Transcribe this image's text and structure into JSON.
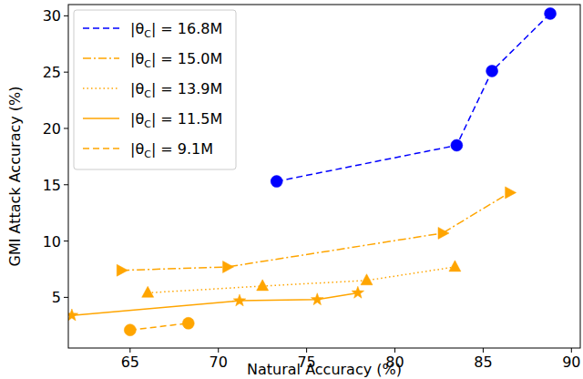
{
  "chart_data": {
    "type": "line",
    "x_label": "Natural Accuracy (%)",
    "y_label": "GMI Attack Accuracy (%)",
    "xlim": [
      61.5,
      90.5
    ],
    "xticks": [
      65,
      70,
      75,
      80,
      85,
      90
    ],
    "ylim": [
      0.5,
      31
    ],
    "yticks": [
      5,
      10,
      15,
      20,
      25,
      30
    ],
    "legend": "upper-left",
    "series": [
      {
        "name": "|θC| = 16.8M",
        "color": "#0000ff",
        "marker": "circle",
        "line_style": "dashed",
        "x": [
          73.3,
          83.5,
          85.5,
          88.8
        ],
        "values": [
          15.3,
          18.5,
          25.1,
          30.2
        ]
      },
      {
        "name": "|θC| = 15.0M",
        "color": "#ffa500",
        "marker": "triangle-right",
        "line_style": "dashdot",
        "x": [
          64.5,
          70.5,
          82.7,
          86.5
        ],
        "values": [
          7.4,
          7.7,
          10.7,
          14.3
        ]
      },
      {
        "name": "|θC| = 13.9M",
        "color": "#ffa500",
        "marker": "triangle-up",
        "line_style": "dotted",
        "x": [
          66.0,
          72.5,
          78.4,
          83.4
        ],
        "values": [
          5.4,
          6.0,
          6.5,
          7.7
        ]
      },
      {
        "name": "|θC| = 11.5M",
        "color": "#ffa500",
        "marker": "star",
        "line_style": "solid",
        "x": [
          61.7,
          71.2,
          75.6,
          77.9
        ],
        "values": [
          3.4,
          4.7,
          4.8,
          5.4
        ]
      },
      {
        "name": "|θC| =  9.1M",
        "color": "#ffa500",
        "marker": "circle",
        "line_style": "dashed",
        "x": [
          65.0,
          68.3
        ],
        "values": [
          2.1,
          2.7
        ]
      }
    ]
  }
}
